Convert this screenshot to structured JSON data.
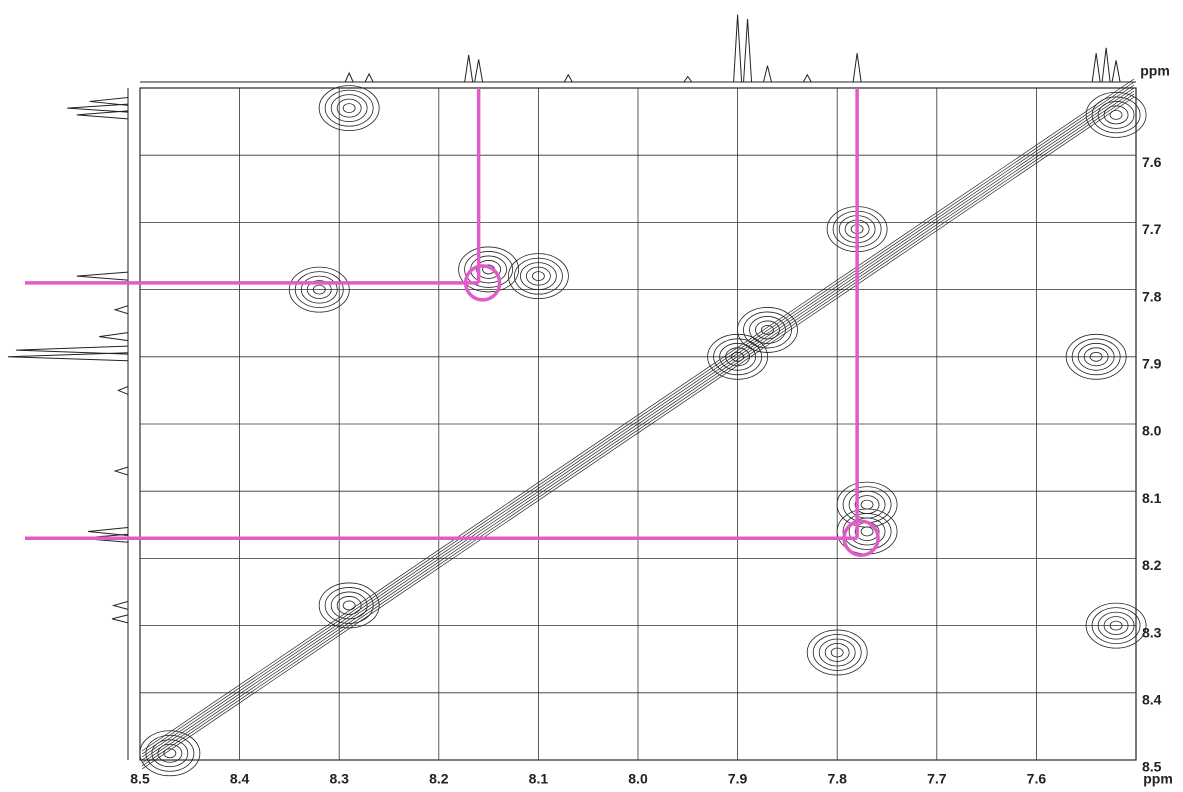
{
  "chart_data": {
    "type": "contour",
    "x_label": "ppm",
    "y_label": "ppm",
    "xlim": [
      8.5,
      7.5
    ],
    "ylim": [
      7.5,
      8.5
    ],
    "xticks": [
      8.5,
      8.4,
      8.3,
      8.2,
      8.1,
      {
        "value": 8,
        "label": "8.0"
      },
      7.9,
      7.8,
      7.7,
      7.6
    ],
    "yticks": [
      7.6,
      7.7,
      7.8,
      7.9,
      {
        "value": 8,
        "label": "8.0"
      },
      8.1,
      8.2,
      8.3,
      8.4,
      8.5
    ],
    "grid": true,
    "peaks": {
      "x": [
        8.47,
        8.29,
        8.15,
        8.1,
        8.32,
        7.9,
        7.78,
        7.77,
        7.52,
        7.52,
        7.8,
        8.29,
        7.87,
        7.54,
        7.77
      ],
      "y": [
        8.49,
        7.53,
        7.77,
        7.78,
        7.8,
        7.9,
        7.71,
        8.12,
        8.3,
        7.54,
        8.34,
        8.27,
        7.86,
        7.9,
        8.16
      ]
    },
    "projection": {
      "shifts": [
        8.29,
        8.27,
        8.17,
        8.16,
        8.07,
        7.95,
        7.9,
        7.89,
        7.87,
        7.83,
        7.78,
        7.54,
        7.53,
        7.52
      ],
      "heights": [
        10,
        9,
        30,
        25,
        8,
        6,
        75,
        70,
        18,
        8,
        32,
        32,
        38,
        24
      ]
    },
    "guides": {
      "color": "#e05cc8",
      "x": [
        8.16,
        7.78
      ],
      "y": [
        7.79,
        8.17
      ]
    }
  }
}
